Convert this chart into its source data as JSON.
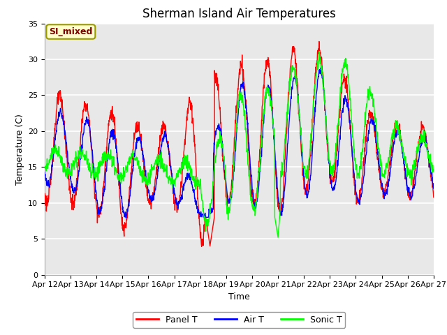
{
  "title": "Sherman Island Air Temperatures",
  "xlabel": "Time",
  "ylabel": "Temperature (C)",
  "ylim": [
    0,
    35
  ],
  "xlim": [
    0,
    360
  ],
  "plot_bg": "#e8e8e8",
  "grid_color": "white",
  "panel_t_color": "red",
  "air_t_color": "blue",
  "sonic_t_color": "lime",
  "annotation_text": "SI_mixed",
  "annotation_color": "#800000",
  "annotation_bg": "#ffffcc",
  "annotation_edge": "#999900",
  "xtick_labels": [
    "Apr 12",
    "Apr 13",
    "Apr 14",
    "Apr 15",
    "Apr 16",
    "Apr 17",
    "Apr 18",
    "Apr 19",
    "Apr 20",
    "Apr 21",
    "Apr 22",
    "Apr 23",
    "Apr 24",
    "Apr 25",
    "Apr 26",
    "Apr 27"
  ],
  "xtick_positions": [
    0,
    24,
    48,
    72,
    96,
    120,
    144,
    168,
    192,
    216,
    240,
    264,
    288,
    312,
    336,
    360
  ],
  "ytick_positions": [
    0,
    5,
    10,
    15,
    20,
    25,
    30,
    35
  ],
  "title_fontsize": 12,
  "axis_label_fontsize": 9,
  "tick_fontsize": 8,
  "legend_fontsize": 9
}
